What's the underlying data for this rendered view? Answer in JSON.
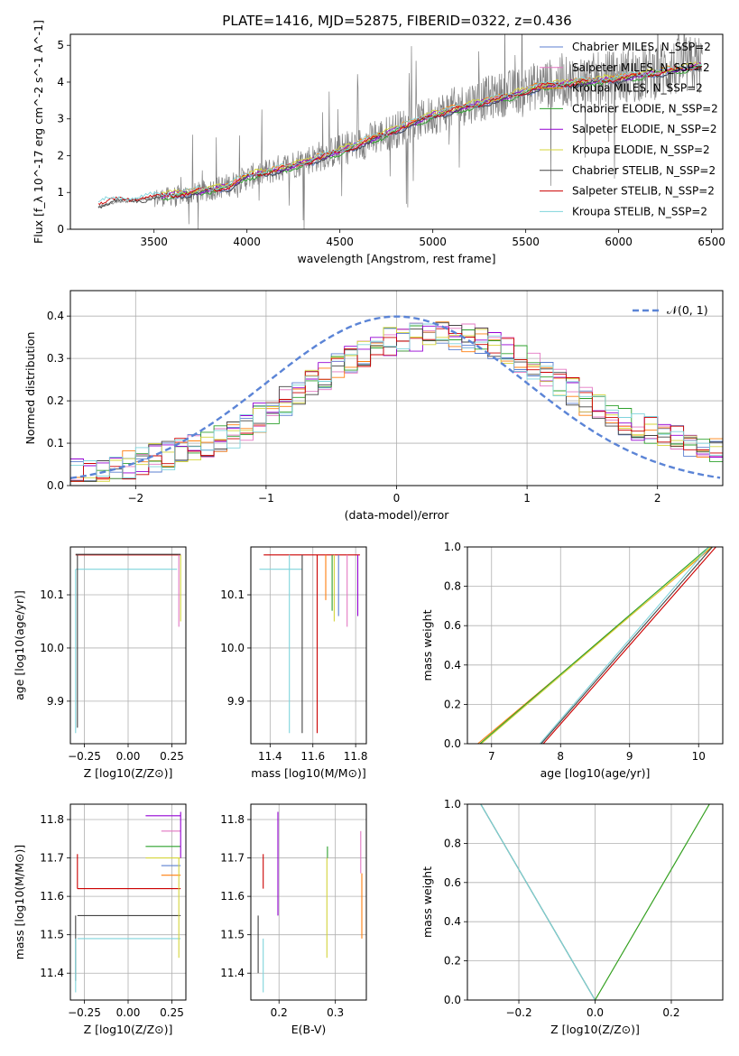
{
  "figure": {
    "title": "PLATE=1416, MJD=52875, FIBERID=0322, z=0.436"
  },
  "chart_data": [
    {
      "id": "spectrum",
      "type": "line",
      "xlabel": "wavelength [Angstrom, rest frame]",
      "ylabel": "Flux [f_λ 10^-17 erg cm^-2 s^-1 A^-1]",
      "xlim": [
        3050,
        6560
      ],
      "ylim": [
        0,
        5.3
      ],
      "xticks": [
        3500,
        4000,
        4500,
        5000,
        5500,
        6000,
        6500
      ],
      "yticks": [
        0,
        1,
        2,
        3,
        4,
        5
      ],
      "grid": false,
      "legend_position": "top-right",
      "data_trace": {
        "color": "#808080",
        "x_range": [
          3200,
          6450
        ],
        "continuum": [
          [
            3200,
            0.6
          ],
          [
            3300,
            0.75
          ],
          [
            3500,
            0.85
          ],
          [
            3700,
            0.95
          ],
          [
            3900,
            1.2
          ],
          [
            4000,
            1.4
          ],
          [
            4200,
            1.7
          ],
          [
            4400,
            2.0
          ],
          [
            4600,
            2.3
          ],
          [
            4800,
            2.7
          ],
          [
            5000,
            3.1
          ],
          [
            5200,
            3.45
          ],
          [
            5400,
            3.7
          ],
          [
            5600,
            3.95
          ],
          [
            5800,
            4.05
          ],
          [
            6000,
            4.15
          ],
          [
            6200,
            4.3
          ],
          [
            6450,
            4.5
          ]
        ],
        "noise_onset": 3500
      },
      "series": [
        {
          "name": "Chabrier MILES, N_SSP=2",
          "color": "#5b7fd0"
        },
        {
          "name": "Salpeter MILES, N_SSP=2",
          "color": "#e377c2"
        },
        {
          "name": "Kroupa MILES, N_SSP=2",
          "color": "#ff7f0e"
        },
        {
          "name": "Chabrier ELODIE, N_SSP=2",
          "color": "#2ca02c"
        },
        {
          "name": "Salpeter ELODIE, N_SSP=2",
          "color": "#9400d3"
        },
        {
          "name": "Kroupa ELODIE, N_SSP=2",
          "color": "#d4d43a"
        },
        {
          "name": "Chabrier STELIB, N_SSP=2",
          "color": "#444444"
        },
        {
          "name": "Salpeter STELIB, N_SSP=2",
          "color": "#cc0000"
        },
        {
          "name": "Kroupa STELIB, N_SSP=2",
          "color": "#7fd4dc"
        }
      ],
      "model_continuum": [
        [
          3200,
          0.7
        ],
        [
          3300,
          0.8
        ],
        [
          3500,
          0.88
        ],
        [
          3700,
          1.0
        ],
        [
          3900,
          1.15
        ],
        [
          4000,
          1.45
        ],
        [
          4200,
          1.65
        ],
        [
          4400,
          1.95
        ],
        [
          4600,
          2.3
        ],
        [
          4800,
          2.7
        ],
        [
          5000,
          3.1
        ],
        [
          5200,
          3.35
        ],
        [
          5400,
          3.6
        ],
        [
          5600,
          3.9
        ],
        [
          5800,
          4.0
        ],
        [
          6000,
          4.1
        ],
        [
          6200,
          4.25
        ],
        [
          6450,
          4.45
        ]
      ]
    },
    {
      "id": "residuals",
      "type": "line",
      "xlabel": "(data-model)/error",
      "ylabel": "Normed distribution",
      "xlim": [
        -2.5,
        2.5
      ],
      "ylim": [
        0,
        0.46
      ],
      "xticks": [
        -2,
        -1,
        0,
        1,
        2
      ],
      "yticks": [
        0.0,
        0.1,
        0.2,
        0.3,
        0.4
      ],
      "grid": true,
      "legend_position": "top-right",
      "reference_curve": {
        "name": "𝒩(0, 1)",
        "color": "#5b84d6",
        "style": "dashed",
        "mean": 0,
        "sigma": 1
      },
      "histogram_bins": {
        "start": -2.5,
        "width": 0.1,
        "count": 50
      },
      "histogram_base": [
        0.03,
        0.025,
        0.03,
        0.04,
        0.05,
        0.06,
        0.065,
        0.07,
        0.08,
        0.09,
        0.1,
        0.11,
        0.12,
        0.14,
        0.16,
        0.18,
        0.2,
        0.22,
        0.24,
        0.26,
        0.28,
        0.3,
        0.31,
        0.33,
        0.34,
        0.34,
        0.35,
        0.355,
        0.36,
        0.355,
        0.35,
        0.34,
        0.33,
        0.32,
        0.3,
        0.28,
        0.26,
        0.24,
        0.22,
        0.2,
        0.18,
        0.165,
        0.15,
        0.14,
        0.13,
        0.12,
        0.11,
        0.1,
        0.09,
        0.08
      ]
    },
    {
      "id": "age-vs-Z",
      "type": "line",
      "xlabel": "Z [log10(Z/Z⊙)]",
      "ylabel": "age [log10(age/yr)]",
      "xlim": [
        -0.33,
        0.33
      ],
      "ylim": [
        9.82,
        10.19
      ],
      "xticks": [
        -0.25,
        0.0,
        0.25
      ],
      "xticklabels": [
        "−0.25",
        "0.00",
        "0.25"
      ],
      "yticks": [
        9.9,
        10.0,
        10.1
      ],
      "grid": true,
      "segments": [
        {
          "color": "#cc0000",
          "x": [
            -0.3,
            0.3
          ],
          "y": [
            10.175,
            10.175
          ]
        },
        {
          "color": "#444444",
          "x": [
            -0.3,
            0.3
          ],
          "y": [
            10.176,
            10.176
          ]
        },
        {
          "color": "#7fd4dc",
          "x": [
            -0.3,
            0.28
          ],
          "y": [
            10.148,
            10.148
          ]
        },
        {
          "color": "#7fd4dc",
          "x": [
            -0.3,
            -0.3
          ],
          "y": [
            9.84,
            10.148
          ]
        },
        {
          "color": "#444444",
          "x": [
            -0.29,
            -0.29
          ],
          "y": [
            9.85,
            10.176
          ]
        },
        {
          "color": "#d4d43a",
          "x": [
            0.3,
            0.3
          ],
          "y": [
            10.05,
            10.175
          ]
        },
        {
          "color": "#e377c2",
          "x": [
            0.29,
            0.29
          ],
          "y": [
            10.04,
            10.175
          ]
        }
      ]
    },
    {
      "id": "age-vs-mass",
      "type": "line",
      "xlabel": "mass [log10(M/M⊙)]",
      "ylabel": "",
      "xlim": [
        11.31,
        11.85
      ],
      "ylim": [
        9.82,
        10.19
      ],
      "xticks": [
        11.4,
        11.6,
        11.8
      ],
      "yticks": [
        9.9,
        10.0,
        10.1
      ],
      "grid": true,
      "segments": [
        {
          "color": "#cc0000",
          "x": [
            11.37,
            11.82
          ],
          "y": [
            10.175,
            10.175
          ]
        },
        {
          "color": "#7fd4dc",
          "x": [
            11.35,
            11.55
          ],
          "y": [
            10.148,
            10.148
          ]
        },
        {
          "color": "#7fd4dc",
          "x": [
            11.49,
            11.49
          ],
          "y": [
            9.84,
            10.175
          ]
        },
        {
          "color": "#444444",
          "x": [
            11.55,
            11.55
          ],
          "y": [
            9.84,
            10.175
          ]
        },
        {
          "color": "#cc0000",
          "x": [
            11.62,
            11.62
          ],
          "y": [
            9.84,
            10.175
          ]
        },
        {
          "color": "#ff7f0e",
          "x": [
            11.66,
            11.66
          ],
          "y": [
            10.09,
            10.175
          ]
        },
        {
          "color": "#2ca02c",
          "x": [
            11.69,
            11.69
          ],
          "y": [
            10.07,
            10.175
          ]
        },
        {
          "color": "#d4d43a",
          "x": [
            11.7,
            11.7
          ],
          "y": [
            10.05,
            10.175
          ]
        },
        {
          "color": "#5b7fd0",
          "x": [
            11.72,
            11.72
          ],
          "y": [
            10.06,
            10.175
          ]
        },
        {
          "color": "#e377c2",
          "x": [
            11.76,
            11.76
          ],
          "y": [
            10.04,
            10.175
          ]
        },
        {
          "color": "#9400d3",
          "x": [
            11.81,
            11.81
          ],
          "y": [
            10.06,
            10.175
          ]
        }
      ]
    },
    {
      "id": "weight-vs-age",
      "type": "line",
      "xlabel": "age [log10(age/yr)]",
      "ylabel": "mass weight",
      "xlim": [
        6.65,
        10.35
      ],
      "ylim": [
        0,
        1
      ],
      "xticks": [
        7,
        8,
        9,
        10
      ],
      "yticks": [
        0.0,
        0.2,
        0.4,
        0.6,
        0.8,
        1.0
      ],
      "grid": true,
      "series": [
        {
          "color": "#ff7f0e",
          "x": [
            6.8,
            10.2
          ],
          "y": [
            0,
            1
          ]
        },
        {
          "color": "#d4d43a",
          "x": [
            6.85,
            10.18
          ],
          "y": [
            0,
            1
          ]
        },
        {
          "color": "#2ca02c",
          "x": [
            6.83,
            10.15
          ],
          "y": [
            0,
            1
          ]
        },
        {
          "color": "#7fd4dc",
          "x": [
            7.7,
            10.15
          ],
          "y": [
            0,
            1
          ]
        },
        {
          "color": "#444444",
          "x": [
            7.72,
            10.2
          ],
          "y": [
            0,
            1
          ]
        },
        {
          "color": "#cc0000",
          "x": [
            7.75,
            10.25
          ],
          "y": [
            0,
            1
          ]
        }
      ]
    },
    {
      "id": "mass-vs-Z",
      "type": "line",
      "xlabel": "Z [log10(Z/Z⊙)]",
      "ylabel": "mass [log10(M/M⊙)]",
      "xlim": [
        -0.33,
        0.33
      ],
      "ylim": [
        11.33,
        11.84
      ],
      "xticks": [
        -0.25,
        0.0,
        0.25
      ],
      "xticklabels": [
        "−0.25",
        "0.00",
        "0.25"
      ],
      "yticks": [
        11.4,
        11.5,
        11.6,
        11.7,
        11.8
      ],
      "grid": true,
      "segments": [
        {
          "color": "#cc0000",
          "x": [
            -0.29,
            0.3
          ],
          "y": [
            11.62,
            11.62
          ]
        },
        {
          "color": "#444444",
          "x": [
            -0.29,
            0.3
          ],
          "y": [
            11.55,
            11.55
          ]
        },
        {
          "color": "#7fd4dc",
          "x": [
            -0.29,
            0.3
          ],
          "y": [
            11.49,
            11.49
          ]
        },
        {
          "color": "#cc0000",
          "x": [
            -0.29,
            -0.29
          ],
          "y": [
            11.62,
            11.71
          ]
        },
        {
          "color": "#444444",
          "x": [
            -0.3,
            -0.3
          ],
          "y": [
            11.38,
            11.55
          ]
        },
        {
          "color": "#7fd4dc",
          "x": [
            -0.3,
            -0.3
          ],
          "y": [
            11.35,
            11.49
          ]
        },
        {
          "color": "#9400d3",
          "x": [
            0.1,
            0.3
          ],
          "y": [
            11.81,
            11.81
          ]
        },
        {
          "color": "#e377c2",
          "x": [
            0.19,
            0.3
          ],
          "y": [
            11.77,
            11.77
          ]
        },
        {
          "color": "#2ca02c",
          "x": [
            0.1,
            0.3
          ],
          "y": [
            11.73,
            11.73
          ]
        },
        {
          "color": "#d4d43a",
          "x": [
            0.1,
            0.3
          ],
          "y": [
            11.7,
            11.7
          ]
        },
        {
          "color": "#5b7fd0",
          "x": [
            0.19,
            0.3
          ],
          "y": [
            11.68,
            11.68
          ]
        },
        {
          "color": "#ff7f0e",
          "x": [
            0.19,
            0.3
          ],
          "y": [
            11.655,
            11.655
          ]
        },
        {
          "color": "#9400d3",
          "x": [
            0.3,
            0.3
          ],
          "y": [
            11.7,
            11.82
          ]
        },
        {
          "color": "#d4d43a",
          "x": [
            0.29,
            0.29
          ],
          "y": [
            11.44,
            11.7
          ]
        }
      ]
    },
    {
      "id": "mass-vs-EBV",
      "type": "line",
      "xlabel": "E(B-V)",
      "ylabel": "",
      "xlim": [
        0.15,
        0.355
      ],
      "ylim": [
        11.33,
        11.84
      ],
      "xticks": [
        0.2,
        0.3
      ],
      "yticks": [
        11.4,
        11.5,
        11.6,
        11.7,
        11.8
      ],
      "grid": true,
      "segments": [
        {
          "color": "#444444",
          "x": [
            0.163,
            0.163
          ],
          "y": [
            11.4,
            11.55
          ]
        },
        {
          "color": "#7fd4dc",
          "x": [
            0.172,
            0.172
          ],
          "y": [
            11.35,
            11.49
          ]
        },
        {
          "color": "#cc0000",
          "x": [
            0.172,
            0.172
          ],
          "y": [
            11.62,
            11.71
          ]
        },
        {
          "color": "#9400d3",
          "x": [
            0.198,
            0.198
          ],
          "y": [
            11.55,
            11.82
          ]
        },
        {
          "color": "#d4d43a",
          "x": [
            0.285,
            0.285
          ],
          "y": [
            11.44,
            11.7
          ]
        },
        {
          "color": "#2ca02c",
          "x": [
            0.286,
            0.286
          ],
          "y": [
            11.7,
            11.73
          ]
        },
        {
          "color": "#e377c2",
          "x": [
            0.345,
            0.345
          ],
          "y": [
            11.66,
            11.77
          ]
        },
        {
          "color": "#ff7f0e",
          "x": [
            0.347,
            0.347
          ],
          "y": [
            11.49,
            11.66
          ]
        }
      ]
    },
    {
      "id": "weight-vs-Z",
      "type": "line",
      "xlabel": "Z [log10(Z/Z⊙)]",
      "ylabel": "mass weight",
      "xlim": [
        -0.335,
        0.335
      ],
      "ylim": [
        0,
        1
      ],
      "xticks": [
        -0.2,
        0.0,
        0.2
      ],
      "xticklabels": [
        "−0.2",
        "0.0",
        "0.2"
      ],
      "yticks": [
        0.0,
        0.2,
        0.4,
        0.6,
        0.8,
        1.0
      ],
      "grid": true,
      "series": [
        {
          "color": "#2ca02c",
          "x": [
            -0.3,
            0.0
          ],
          "y": [
            1,
            0
          ]
        },
        {
          "color": "#444444",
          "x": [
            -0.3,
            0.0
          ],
          "y": [
            1,
            0
          ]
        },
        {
          "color": "#7fd4dc",
          "x": [
            -0.3,
            0.0
          ],
          "y": [
            1,
            0
          ]
        },
        {
          "color": "#d4d43a",
          "x": [
            0.0,
            0.3
          ],
          "y": [
            0,
            1
          ]
        },
        {
          "color": "#2ca02c",
          "x": [
            0.0,
            0.3
          ],
          "y": [
            0,
            1
          ]
        }
      ]
    }
  ]
}
